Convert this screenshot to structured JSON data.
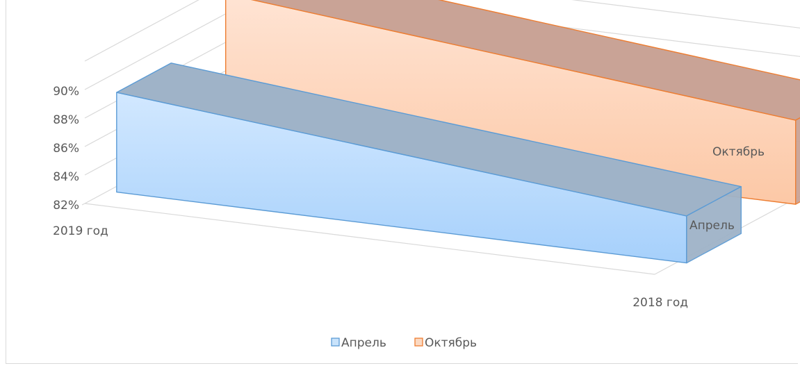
{
  "chart_data": {
    "type": "bar",
    "subtype": "3d-line-ribbon",
    "title": "",
    "categories": [
      "2019 год",
      "2018 год"
    ],
    "series": [
      {
        "name": "Апрель",
        "values": [
          88.6,
          84.9
        ],
        "color": "#5b9bd5"
      },
      {
        "name": "Октябрь",
        "values": [
          91.4,
          87.5
        ],
        "color": "#ed7d31"
      }
    ],
    "y_ticks": [
      "82%",
      "84%",
      "86%",
      "88%",
      "90%"
    ],
    "ylim": [
      82,
      92
    ],
    "grid": true,
    "legend": "bottom"
  },
  "colors": {
    "april_face_top": "#d2e8ff",
    "april_face_bottom": "#a6d0fb",
    "april_top": "#9fb3c8",
    "october_face_top": "#ffe4d4",
    "october_face_bottom": "#fcc8a6",
    "october_top": "#c9a396",
    "grid": "#d9d9d9"
  }
}
